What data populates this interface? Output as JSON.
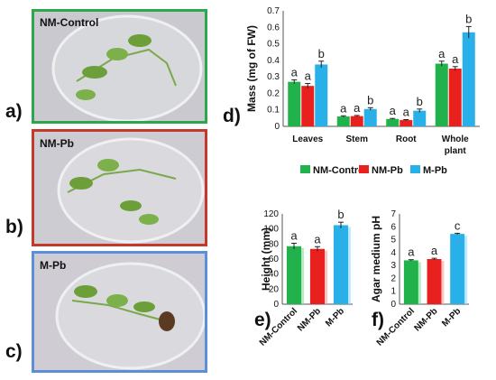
{
  "photos": [
    {
      "label": "NM-Control",
      "letter": "a)",
      "frame": "#2aa84a"
    },
    {
      "label": "NM-Pb",
      "letter": "b)",
      "frame": "#c5392a"
    },
    {
      "label": "M-Pb",
      "letter": "c)",
      "frame": "#5b8fd9"
    }
  ],
  "colors": {
    "NM-Control": "#22b24c",
    "NM-Pb": "#e8201e",
    "M-Pb": "#2ab0e8"
  },
  "chart_data": [
    {
      "id": "d",
      "letter": "d)",
      "type": "bar",
      "ylabel": "Mass (mg of FW)",
      "ylim": [
        0,
        0.7
      ],
      "yticks": [
        "0",
        "0.1",
        "0.2",
        "0.3",
        "0.4",
        "0.5",
        "0.6",
        "0.7"
      ],
      "categories": [
        "Leaves",
        "Stem",
        "Root",
        "Whole plant"
      ],
      "series": [
        {
          "name": "NM-Control",
          "values": [
            0.27,
            0.06,
            0.045,
            0.38
          ],
          "errors": [
            0.012,
            0.004,
            0.003,
            0.015
          ],
          "sig": [
            "a",
            "a",
            "a",
            "a"
          ]
        },
        {
          "name": "NM-Pb",
          "values": [
            0.245,
            0.062,
            0.038,
            0.35
          ],
          "errors": [
            0.015,
            0.004,
            0.003,
            0.012
          ],
          "sig": [
            "a",
            "a",
            "a",
            "a"
          ]
        },
        {
          "name": "M-Pb",
          "values": [
            0.375,
            0.105,
            0.095,
            0.57
          ],
          "errors": [
            0.02,
            0.008,
            0.01,
            0.035
          ],
          "sig": [
            "b",
            "b",
            "b",
            "b"
          ]
        }
      ],
      "legend": [
        "NM-Control",
        "NM-Pb",
        "M-Pb"
      ],
      "legend_position": "bottom"
    },
    {
      "id": "e",
      "letter": "e)",
      "type": "bar",
      "ylabel": "Height (mm)",
      "ylim": [
        0,
        120
      ],
      "yticks": [
        "0",
        "20",
        "40",
        "60",
        "80",
        "100",
        "120"
      ],
      "categories": [
        "NM-Control",
        "NM-Pb",
        "M-Pb"
      ],
      "values": [
        77,
        73.5,
        105
      ],
      "errors": [
        4,
        3,
        4
      ],
      "sig": [
        "a",
        "a",
        "b"
      ]
    },
    {
      "id": "f",
      "letter": "f)",
      "type": "bar",
      "ylabel": "Agar medium pH",
      "ylim": [
        0,
        7
      ],
      "yticks": [
        "0",
        "1",
        "2",
        "3",
        "4",
        "5",
        "6",
        "7"
      ],
      "categories": [
        "NM-Control",
        "NM-Pb",
        "M-Pb"
      ],
      "values": [
        3.4,
        3.5,
        5.45
      ],
      "errors": [
        0.05,
        0.06,
        0.05
      ],
      "sig": [
        "a",
        "a",
        "c"
      ]
    }
  ]
}
